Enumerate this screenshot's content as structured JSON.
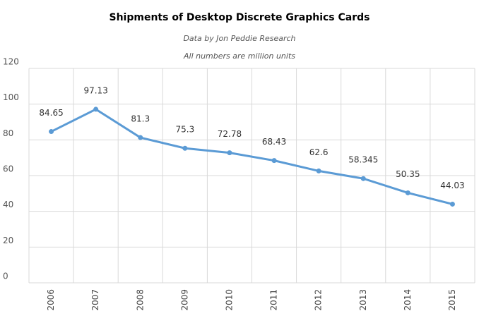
{
  "chart_data": {
    "type": "line",
    "title": "Shipments of Desktop Discrete Graphics Cards",
    "subtitle": "Data by Jon Peddie Research",
    "note": "All numbers are million units",
    "categories": [
      "2006",
      "2007",
      "2008",
      "2009",
      "2010",
      "2011",
      "2012",
      "2013",
      "2014",
      "2015"
    ],
    "values": [
      84.65,
      97.13,
      81.3,
      75.3,
      72.78,
      68.43,
      62.6,
      58.345,
      50.35,
      44.03
    ],
    "color": "#5b9bd5",
    "ylim": [
      0,
      120
    ],
    "yticks": [
      0,
      20,
      40,
      60,
      80,
      100,
      120
    ],
    "grid": true
  }
}
